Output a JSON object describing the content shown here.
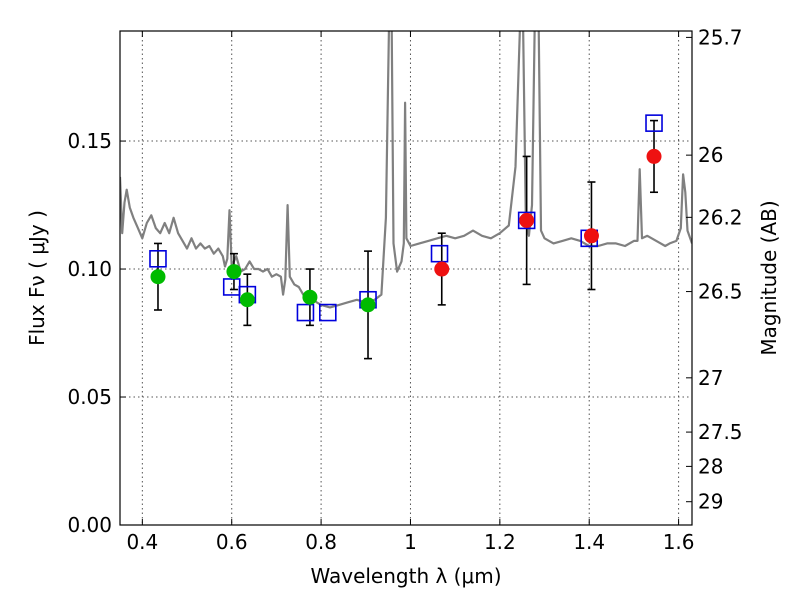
{
  "chart_data": {
    "type": "scatter",
    "xlabel": "Wavelength  λ (μm)",
    "ylabel": "Flux  Fν  ( μJy )",
    "y2label": "Magnitude (AB)",
    "xlim": [
      0.35,
      1.63
    ],
    "ylim": [
      0.0,
      0.193
    ],
    "xticks": [
      0.4,
      0.6,
      0.8,
      1.0,
      1.2,
      1.4,
      1.6
    ],
    "xtick_labels": [
      "0.4",
      "0.6",
      "0.8",
      "1",
      "1.2",
      "1.4",
      "1.6"
    ],
    "yticks": [
      0.0,
      0.05,
      0.1,
      0.15
    ],
    "ytick_labels": [
      "0.00",
      "0.05",
      "0.10",
      "0.15"
    ],
    "y2ticks": [
      {
        "label": "25.7",
        "flux": 0.1905
      },
      {
        "label": "26",
        "flux": 0.1445
      },
      {
        "label": "26.2",
        "flux": 0.1202
      },
      {
        "label": "26.5",
        "flux": 0.0912
      },
      {
        "label": "27",
        "flux": 0.0575
      },
      {
        "label": "27.5",
        "flux": 0.0363
      },
      {
        "label": "28",
        "flux": 0.0229
      },
      {
        "label": "29",
        "flux": 0.0091
      }
    ],
    "grid": true,
    "colors": {
      "model": "#808080",
      "optical": "#00bb00",
      "infrared": "#ee1111",
      "model_box": "#0000dd",
      "errorbar": "#000000"
    },
    "model_spectrum": [
      [
        0.35,
        0.136
      ],
      [
        0.355,
        0.114
      ],
      [
        0.36,
        0.126
      ],
      [
        0.365,
        0.131
      ],
      [
        0.372,
        0.124
      ],
      [
        0.38,
        0.12
      ],
      [
        0.39,
        0.116
      ],
      [
        0.4,
        0.112
      ],
      [
        0.41,
        0.118
      ],
      [
        0.42,
        0.121
      ],
      [
        0.43,
        0.116
      ],
      [
        0.44,
        0.114
      ],
      [
        0.45,
        0.118
      ],
      [
        0.46,
        0.114
      ],
      [
        0.47,
        0.12
      ],
      [
        0.48,
        0.114
      ],
      [
        0.49,
        0.111
      ],
      [
        0.5,
        0.108
      ],
      [
        0.51,
        0.112
      ],
      [
        0.52,
        0.108
      ],
      [
        0.53,
        0.11
      ],
      [
        0.54,
        0.108
      ],
      [
        0.55,
        0.109
      ],
      [
        0.56,
        0.106
      ],
      [
        0.57,
        0.108
      ],
      [
        0.58,
        0.105
      ],
      [
        0.585,
        0.101
      ],
      [
        0.59,
        0.104
      ],
      [
        0.595,
        0.123
      ],
      [
        0.6,
        0.101
      ],
      [
        0.61,
        0.105
      ],
      [
        0.62,
        0.099
      ],
      [
        0.63,
        0.1
      ],
      [
        0.64,
        0.103
      ],
      [
        0.65,
        0.1
      ],
      [
        0.66,
        0.1
      ],
      [
        0.67,
        0.099
      ],
      [
        0.68,
        0.1
      ],
      [
        0.69,
        0.097
      ],
      [
        0.7,
        0.098
      ],
      [
        0.71,
        0.097
      ],
      [
        0.715,
        0.09
      ],
      [
        0.72,
        0.096
      ],
      [
        0.725,
        0.125
      ],
      [
        0.73,
        0.097
      ],
      [
        0.74,
        0.094
      ],
      [
        0.75,
        0.093
      ],
      [
        0.76,
        0.09
      ],
      [
        0.77,
        0.091
      ],
      [
        0.78,
        0.089
      ],
      [
        0.79,
        0.087
      ],
      [
        0.8,
        0.086
      ],
      [
        0.82,
        0.085
      ],
      [
        0.84,
        0.086
      ],
      [
        0.86,
        0.087
      ],
      [
        0.88,
        0.088
      ],
      [
        0.9,
        0.087
      ],
      [
        0.92,
        0.088
      ],
      [
        0.935,
        0.09
      ],
      [
        0.945,
        0.12
      ],
      [
        0.952,
        0.195
      ],
      [
        0.958,
        0.195
      ],
      [
        0.962,
        0.11
      ],
      [
        0.97,
        0.099
      ],
      [
        0.98,
        0.103
      ],
      [
        0.985,
        0.11
      ],
      [
        0.988,
        0.165
      ],
      [
        0.991,
        0.112
      ],
      [
        1.0,
        0.109
      ],
      [
        1.02,
        0.11
      ],
      [
        1.04,
        0.111
      ],
      [
        1.06,
        0.112
      ],
      [
        1.08,
        0.113
      ],
      [
        1.1,
        0.112
      ],
      [
        1.12,
        0.113
      ],
      [
        1.14,
        0.115
      ],
      [
        1.16,
        0.113
      ],
      [
        1.18,
        0.112
      ],
      [
        1.2,
        0.114
      ],
      [
        1.22,
        0.117
      ],
      [
        1.235,
        0.14
      ],
      [
        1.245,
        0.195
      ],
      [
        1.252,
        0.195
      ],
      [
        1.258,
        0.12
      ],
      [
        1.265,
        0.113
      ],
      [
        1.272,
        0.125
      ],
      [
        1.278,
        0.195
      ],
      [
        1.287,
        0.195
      ],
      [
        1.292,
        0.115
      ],
      [
        1.3,
        0.112
      ],
      [
        1.32,
        0.11
      ],
      [
        1.34,
        0.111
      ],
      [
        1.36,
        0.112
      ],
      [
        1.38,
        0.111
      ],
      [
        1.4,
        0.109
      ],
      [
        1.42,
        0.109
      ],
      [
        1.44,
        0.11
      ],
      [
        1.46,
        0.11
      ],
      [
        1.48,
        0.109
      ],
      [
        1.5,
        0.111
      ],
      [
        1.508,
        0.111
      ],
      [
        1.513,
        0.139
      ],
      [
        1.518,
        0.112
      ],
      [
        1.53,
        0.113
      ],
      [
        1.55,
        0.111
      ],
      [
        1.56,
        0.11
      ],
      [
        1.57,
        0.109
      ],
      [
        1.58,
        0.11
      ],
      [
        1.595,
        0.111
      ],
      [
        1.605,
        0.116
      ],
      [
        1.61,
        0.137
      ],
      [
        1.615,
        0.13
      ],
      [
        1.62,
        0.115
      ],
      [
        1.63,
        0.11
      ]
    ],
    "model_photometry": [
      [
        0.435,
        0.104
      ],
      [
        0.6,
        0.093
      ],
      [
        0.635,
        0.09
      ],
      [
        0.765,
        0.083
      ],
      [
        0.815,
        0.083
      ],
      [
        0.905,
        0.088
      ],
      [
        1.065,
        0.106
      ],
      [
        1.26,
        0.119
      ],
      [
        1.4,
        0.112
      ],
      [
        1.545,
        0.157
      ]
    ],
    "observed_optical": [
      {
        "x": 0.435,
        "y": 0.097,
        "err": 0.013
      },
      {
        "x": 0.605,
        "y": 0.099,
        "err": 0.007
      },
      {
        "x": 0.635,
        "y": 0.088,
        "err": 0.01
      },
      {
        "x": 0.775,
        "y": 0.089,
        "err": 0.011
      },
      {
        "x": 0.905,
        "y": 0.086,
        "err": 0.021
      }
    ],
    "observed_infrared": [
      {
        "x": 1.07,
        "y": 0.1,
        "err": 0.014
      },
      {
        "x": 1.26,
        "y": 0.119,
        "err": 0.025
      },
      {
        "x": 1.405,
        "y": 0.113,
        "err": 0.021
      },
      {
        "x": 1.545,
        "y": 0.144,
        "err": 0.014
      }
    ]
  }
}
